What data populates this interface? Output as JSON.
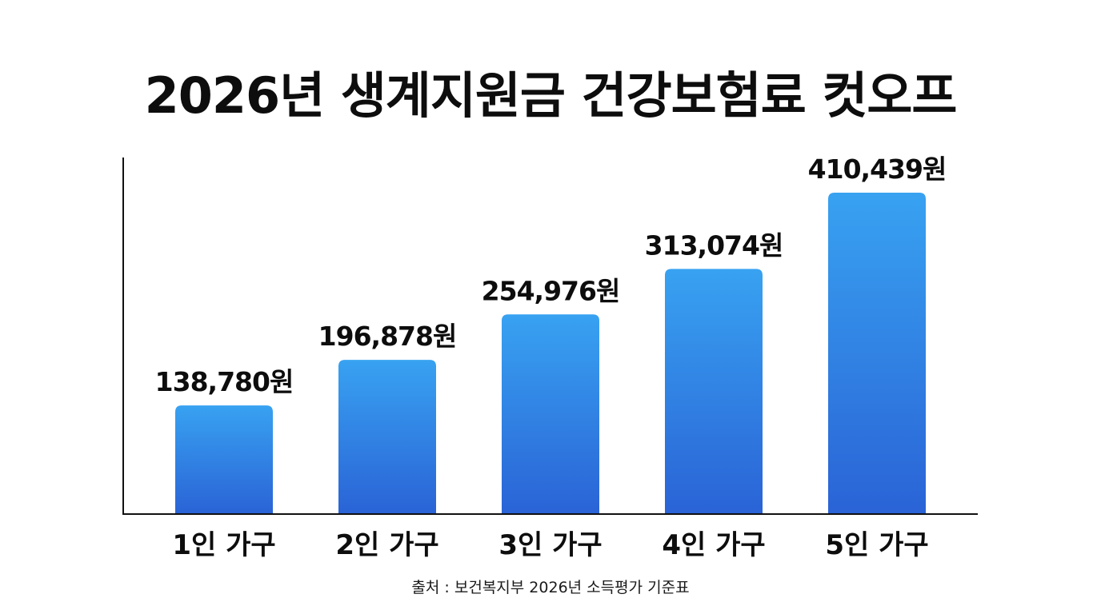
{
  "title": "2026년 생계지원금 건강보험료 컷오프",
  "source": "출처 : 보건복지부 2026년 소득평가 기준표",
  "colors": {
    "bar_top": "#38a2f1",
    "bar_bottom": "#2a63d6",
    "axis": "#111111",
    "text": "#0d0d0d"
  },
  "chart_data": {
    "type": "bar",
    "title": "2026년 생계지원금 건강보험료 컷오프",
    "categories": [
      "1인 가구",
      "2인 가구",
      "3인 가구",
      "4인 가구",
      "5인 가구"
    ],
    "values": [
      138780,
      196878,
      254976,
      313074,
      410439
    ],
    "value_labels": [
      "138,780원",
      "196,878원",
      "254,976원",
      "313,074원",
      "410,439원"
    ],
    "xlabel": "",
    "ylabel": "",
    "y_axis_ticks": "none",
    "grid": false,
    "legend": "none"
  }
}
